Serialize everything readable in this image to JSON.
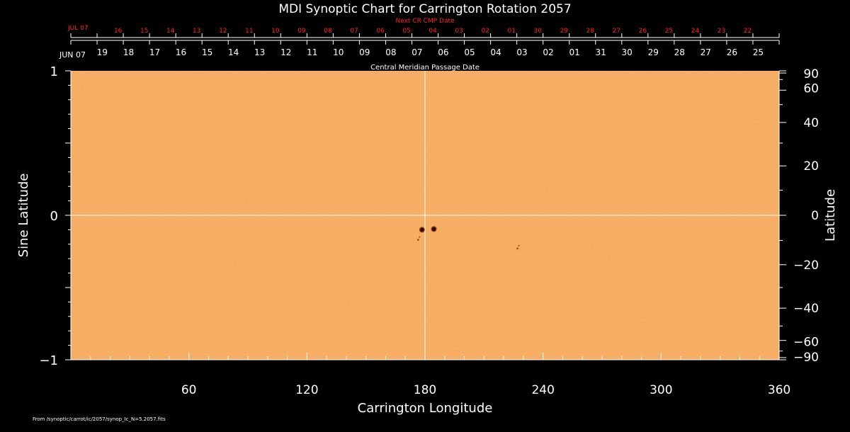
{
  "chart_data": {
    "type": "heatmap",
    "title": "MDI Synoptic Chart for Carrington Rotation 2057",
    "xlabel": "Carrington Longitude",
    "ylabel_left": "Sine Latitude",
    "ylabel_right": "Latitude",
    "xlim": [
      0,
      360
    ],
    "ylim": [
      -1,
      1
    ],
    "x_ticks": [
      "60",
      "120",
      "180",
      "240",
      "300",
      "360"
    ],
    "x_tick_values": [
      60,
      120,
      180,
      240,
      300,
      360
    ],
    "y_left_ticks": [
      "1",
      "0",
      "−1"
    ],
    "y_left_tick_values": [
      1,
      0,
      -1
    ],
    "y_right_ticks": [
      "90",
      "60",
      "40",
      "20",
      "0",
      "−20",
      "−40",
      "−60",
      "−90"
    ],
    "y_right_tick_values": [
      90,
      60,
      40,
      20,
      0,
      -20,
      -40,
      -60,
      -90
    ],
    "top_axis_title": "Central Meridian Passage Date",
    "top_axis_month_label": "JUN 07",
    "top_axis_dates": [
      "19",
      "18",
      "17",
      "16",
      "15",
      "14",
      "13",
      "12",
      "11",
      "10",
      "09",
      "08",
      "07",
      "06",
      "05",
      "04",
      "03",
      "02",
      "01",
      "31",
      "30",
      "29",
      "28",
      "27",
      "26",
      "25"
    ],
    "next_cr_title": "Next CR CMP Date",
    "next_cr_month_label": "JUL 07",
    "next_cr_dates": [
      "16",
      "15",
      "14",
      "13",
      "12",
      "11",
      "10",
      "09",
      "08",
      "07",
      "06",
      "05",
      "04",
      "03",
      "02",
      "01",
      "30",
      "29",
      "28",
      "27",
      "26",
      "25",
      "24",
      "23",
      "22"
    ],
    "crosshair": {
      "longitude": 180,
      "sine_latitude": 0
    },
    "features": [
      {
        "name": "sunspot",
        "longitude": 178.5,
        "sine_latitude": -0.1,
        "polarity": "dark"
      },
      {
        "name": "sunspot",
        "longitude": 184.5,
        "sine_latitude": -0.095,
        "polarity": "dark"
      },
      {
        "name": "plage",
        "longitude": 176.5,
        "sine_latitude": -0.17,
        "polarity": "dark"
      },
      {
        "name": "plage",
        "longitude": 227.0,
        "sine_latitude": -0.23,
        "polarity": "dark"
      }
    ],
    "colors": {
      "background": "#000000",
      "map": "#f5a65a",
      "title_next_cr": "#ff2222",
      "axis": "#ffffff",
      "spot": "#2a0a00"
    }
  },
  "footer": {
    "source_path": "From /synoptic/carrot/ic/2057/synop_Ic_N=5.2057.fits"
  }
}
